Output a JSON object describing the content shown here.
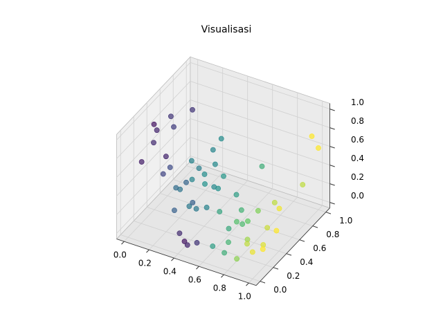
{
  "chart_data": {
    "type": "scatter3d",
    "title": "Visualisasi",
    "x": [
      0.05,
      0.02,
      0.1,
      0.08,
      0.12,
      0.05,
      0.15,
      0.1,
      0.2,
      0.03,
      0.4,
      0.45,
      0.35,
      0.5,
      0.25,
      0.3,
      0.2,
      0.35,
      0.28,
      0.4,
      0.22,
      0.33,
      0.18,
      0.38,
      0.26,
      0.31,
      0.45,
      0.2,
      0.42,
      0.36,
      0.15,
      0.5,
      0.3,
      0.24,
      0.8,
      0.85,
      0.9,
      0.75,
      0.7,
      0.65,
      0.95,
      0.88,
      0.6,
      0.72,
      0.92,
      0.78,
      0.68,
      0.82,
      0.55,
      0.98,
      0.62,
      0.86,
      0.74,
      0.95,
      1.0,
      1.0,
      0.6,
      0.9
    ],
    "y": [
      0.3,
      0.4,
      0.2,
      0.5,
      0.35,
      0.6,
      0.25,
      0.45,
      0.6,
      0.15,
      0.1,
      0.05,
      0.12,
      0.1,
      0.5,
      0.6,
      0.7,
      0.5,
      0.4,
      0.55,
      0.55,
      0.7,
      0.45,
      0.65,
      0.8,
      0.45,
      0.6,
      0.35,
      0.4,
      0.3,
      0.6,
      0.7,
      0.85,
      0.25,
      0.3,
      0.2,
      0.35,
      0.4,
      0.2,
      0.3,
      0.25,
      0.45,
      0.15,
      0.1,
      0.15,
      0.5,
      0.45,
      0.1,
      0.35,
      0.4,
      0.55,
      0.6,
      0.25,
      0.5,
      0.9,
      1.0,
      0.9,
      0.95
    ],
    "z": [
      0.95,
      0.8,
      0.85,
      0.9,
      0.6,
      0.7,
      0.5,
      0.4,
      0.95,
      0.65,
      0.0,
      0.02,
      0.05,
      0.03,
      0.3,
      0.2,
      0.25,
      0.4,
      0.1,
      0.25,
      0.45,
      0.35,
      0.2,
      0.15,
      0.4,
      0.05,
      0.35,
      0.3,
      0.15,
      0.25,
      0.15,
      0.1,
      0.5,
      0.15,
      0.05,
      0.1,
      0.0,
      0.15,
      0.05,
      0.1,
      0.05,
      0.1,
      0.0,
      0.02,
      0.08,
      0.2,
      0.05,
      0.0,
      0.2,
      0.15,
      0.1,
      0.25,
      0.25,
      0.3,
      0.8,
      0.6,
      0.3,
      0.2
    ],
    "c": [
      0.05,
      0.1,
      0.12,
      0.15,
      0.1,
      0.18,
      0.2,
      0.22,
      0.15,
      0.08,
      0.05,
      0.1,
      0.12,
      0.15,
      0.45,
      0.5,
      0.42,
      0.48,
      0.4,
      0.46,
      0.44,
      0.47,
      0.38,
      0.5,
      0.45,
      0.4,
      0.52,
      0.35,
      0.44,
      0.3,
      0.32,
      0.55,
      0.48,
      0.3,
      0.85,
      0.9,
      0.95,
      0.75,
      0.65,
      0.6,
      1.0,
      0.92,
      0.55,
      0.62,
      0.97,
      0.8,
      0.68,
      0.82,
      0.58,
      1.0,
      0.64,
      0.9,
      0.7,
      0.98,
      1.0,
      1.0,
      0.62,
      0.9
    ],
    "colormap": [
      "#440154",
      "#3b528b",
      "#21918c",
      "#5ec962",
      "#fde725"
    ],
    "xlim": [
      0,
      1
    ],
    "ylim": [
      0,
      1
    ],
    "zlim": [
      0,
      1
    ],
    "xticks": [
      {
        "value": 0,
        "label": "0.0"
      },
      0.2,
      0.4,
      0.6,
      0.8,
      {
        "value": 1,
        "label": "1.0"
      }
    ],
    "yticks": [
      {
        "value": 0,
        "label": "0.0"
      },
      0.2,
      0.4,
      0.6,
      0.8,
      {
        "value": 1,
        "label": "1.0"
      }
    ],
    "zticks": [
      {
        "value": 0,
        "label": "0.0"
      },
      0.2,
      0.4,
      0.6,
      0.8,
      {
        "value": 1,
        "label": "1.0"
      }
    ],
    "grid": true
  }
}
